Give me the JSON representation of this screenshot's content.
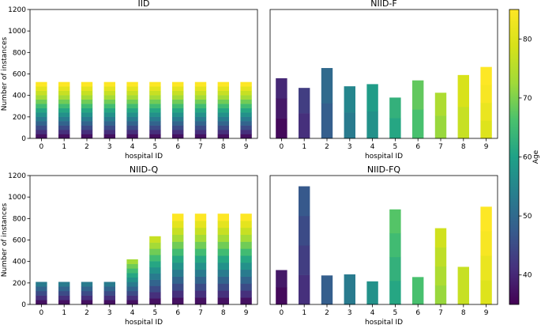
{
  "chart_data": [
    {
      "type": "bar",
      "stacked": true,
      "title": "IID",
      "xlabel": "hospital ID",
      "ylabel": "Number of instances",
      "ylim": [
        0,
        1200
      ],
      "yticks": [
        "0",
        "200",
        "400",
        "600",
        "800",
        "1000",
        "1200"
      ],
      "categories": [
        "0",
        "1",
        "2",
        "3",
        "4",
        "5",
        "6",
        "7",
        "8",
        "9"
      ],
      "totals": [
        525,
        525,
        525,
        525,
        525,
        525,
        525,
        525,
        525,
        525
      ],
      "segment_ages": [
        [
          37,
          41,
          45,
          49,
          53,
          57,
          61,
          65,
          69,
          73,
          77,
          81,
          85
        ],
        [
          37,
          41,
          45,
          49,
          53,
          57,
          61,
          65,
          69,
          73,
          77,
          81,
          85
        ],
        [
          37,
          41,
          45,
          49,
          53,
          57,
          61,
          65,
          69,
          73,
          77,
          81,
          85
        ],
        [
          37,
          41,
          45,
          49,
          53,
          57,
          61,
          65,
          69,
          73,
          77,
          81,
          85
        ],
        [
          37,
          41,
          45,
          49,
          53,
          57,
          61,
          65,
          69,
          73,
          77,
          81,
          85
        ],
        [
          37,
          41,
          45,
          49,
          53,
          57,
          61,
          65,
          69,
          73,
          77,
          81,
          85
        ],
        [
          37,
          41,
          45,
          49,
          53,
          57,
          61,
          65,
          69,
          73,
          77,
          81,
          85
        ],
        [
          37,
          41,
          45,
          49,
          53,
          57,
          61,
          65,
          69,
          73,
          77,
          81,
          85
        ],
        [
          37,
          41,
          45,
          49,
          53,
          57,
          61,
          65,
          69,
          73,
          77,
          81,
          85
        ],
        [
          37,
          41,
          45,
          49,
          53,
          57,
          61,
          65,
          69,
          73,
          77,
          81,
          85
        ]
      ]
    },
    {
      "type": "bar",
      "stacked": true,
      "title": "NIID-F",
      "xlabel": "hospital ID",
      "ylabel": "",
      "ylim": [
        0,
        1200
      ],
      "yticks": [],
      "categories": [
        "0",
        "1",
        "2",
        "3",
        "4",
        "5",
        "6",
        "7",
        "8",
        "9"
      ],
      "totals": [
        560,
        470,
        655,
        485,
        505,
        380,
        540,
        425,
        590,
        665
      ],
      "segment_ages": [
        [
          36,
          38,
          40
        ],
        [
          41,
          43
        ],
        [
          48,
          50
        ],
        [
          53,
          55
        ],
        [
          57,
          59
        ],
        [
          61,
          63
        ],
        [
          66,
          68
        ],
        [
          72,
          74
        ],
        [
          77,
          79
        ],
        [
          80,
          82,
          84,
          86
        ]
      ]
    },
    {
      "type": "bar",
      "stacked": true,
      "title": "NIID-Q",
      "xlabel": "hospital ID",
      "ylabel": "Number of instances",
      "ylim": [
        0,
        1200
      ],
      "yticks": [
        "0",
        "200",
        "400",
        "600",
        "800",
        "1000",
        "1200"
      ],
      "categories": [
        "0",
        "1",
        "2",
        "3",
        "4",
        "5",
        "6",
        "7",
        "8",
        "9"
      ],
      "totals": [
        210,
        210,
        210,
        210,
        420,
        635,
        845,
        845,
        845,
        845
      ],
      "segment_ages": [
        [
          37,
          41,
          45,
          49,
          53
        ],
        [
          37,
          41,
          45,
          49,
          53
        ],
        [
          37,
          41,
          45,
          49,
          53
        ],
        [
          37,
          41,
          45,
          49,
          53
        ],
        [
          37,
          41,
          45,
          49,
          53,
          57,
          61,
          65,
          69,
          73
        ],
        [
          37,
          41,
          45,
          49,
          53,
          57,
          61,
          65,
          69,
          73,
          77
        ],
        [
          37,
          41,
          45,
          49,
          53,
          57,
          61,
          65,
          69,
          73,
          77,
          81,
          85
        ],
        [
          37,
          41,
          45,
          49,
          53,
          57,
          61,
          65,
          69,
          73,
          77,
          81,
          85
        ],
        [
          37,
          41,
          45,
          49,
          53,
          57,
          61,
          65,
          69,
          73,
          77,
          81,
          85
        ],
        [
          37,
          41,
          45,
          49,
          53,
          57,
          61,
          65,
          69,
          73,
          77,
          81,
          85
        ]
      ]
    },
    {
      "type": "bar",
      "stacked": true,
      "title": "NIID-FQ",
      "xlabel": "hospital ID",
      "ylabel": "",
      "ylim": [
        0,
        1200
      ],
      "yticks": [],
      "categories": [
        "0",
        "1",
        "2",
        "3",
        "4",
        "5",
        "6",
        "7",
        "8",
        "9"
      ],
      "totals": [
        320,
        1100,
        270,
        280,
        215,
        885,
        255,
        710,
        350,
        910
      ],
      "segment_ages": [
        [
          36,
          38
        ],
        [
          41,
          43,
          45,
          47
        ],
        [
          48
        ],
        [
          53
        ],
        [
          57
        ],
        [
          61,
          63,
          65,
          67
        ],
        [
          66
        ],
        [
          72,
          74,
          76,
          78
        ],
        [
          77
        ],
        [
          80,
          82,
          84,
          86
        ]
      ]
    }
  ],
  "colorbar": {
    "label": "Age",
    "range": [
      35,
      85
    ],
    "ticks": [
      "40",
      "50",
      "60",
      "70",
      "80"
    ]
  }
}
